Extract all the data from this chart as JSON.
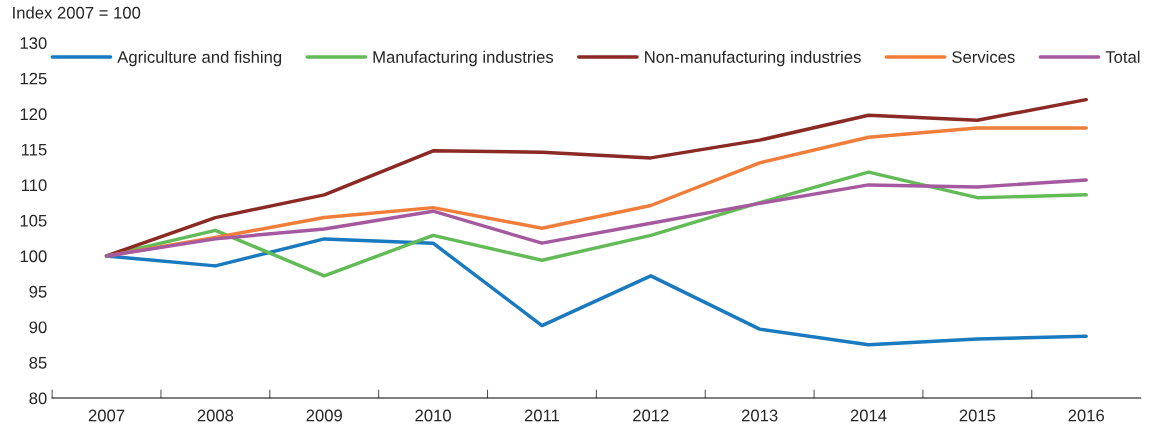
{
  "chart_data": {
    "type": "line",
    "ylabel": "Index 2007 = 100",
    "categories": [
      "2007",
      "2008",
      "2009",
      "2010",
      "2011",
      "2012",
      "2013",
      "2014",
      "2015",
      "2016"
    ],
    "series": [
      {
        "name": "Agriculture and fishing",
        "color": "#1a7abf",
        "values": [
          100,
          98.6,
          102.4,
          101.8,
          90.2,
          97.2,
          89.7,
          87.5,
          88.3,
          88.7
        ]
      },
      {
        "name": "Manufacturing industries",
        "color": "#62bb56",
        "values": [
          100,
          103.6,
          97.2,
          102.9,
          99.4,
          102.9,
          107.5,
          111.8,
          108.2,
          108.6
        ]
      },
      {
        "name": "Non-manufacturing industries",
        "color": "#8b2a24",
        "values": [
          100,
          105.4,
          108.6,
          114.8,
          114.6,
          113.8,
          116.3,
          119.8,
          119.1,
          122.0
        ]
      },
      {
        "name": "Services",
        "color": "#f07e3a",
        "values": [
          100,
          102.6,
          105.4,
          106.8,
          103.9,
          107.1,
          113.1,
          116.7,
          118.0,
          118.0
        ]
      },
      {
        "name": "Total",
        "color": "#a55aa0",
        "values": [
          100,
          102.4,
          103.8,
          106.3,
          101.8,
          104.6,
          107.4,
          110.0,
          109.7,
          110.7
        ]
      }
    ],
    "ylim": [
      80,
      130
    ],
    "yticks": [
      80,
      85,
      90,
      95,
      100,
      105,
      110,
      115,
      120,
      125,
      130
    ],
    "grid": false,
    "legend": "top",
    "marker": "none",
    "line_style": "solid"
  }
}
